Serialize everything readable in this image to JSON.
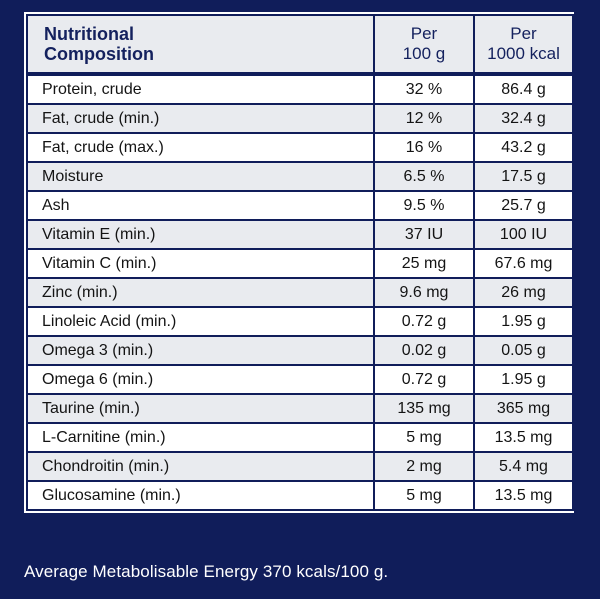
{
  "header": {
    "composition_line1": "Nutritional",
    "composition_line2": "Composition",
    "per100_line1": "Per",
    "per100_line2": "100 g",
    "per1000_line1": "Per",
    "per1000_line2": "1000 kcal"
  },
  "rows": [
    {
      "name": "Protein, crude",
      "per100": "32 %",
      "per1000": "86.4 g"
    },
    {
      "name": "Fat, crude (min.)",
      "per100": "12 %",
      "per1000": "32.4 g"
    },
    {
      "name": "Fat, crude (max.)",
      "per100": "16 %",
      "per1000": "43.2 g"
    },
    {
      "name": "Moisture",
      "per100": "6.5 %",
      "per1000": "17.5 g"
    },
    {
      "name": "Ash",
      "per100": "9.5 %",
      "per1000": "25.7 g"
    },
    {
      "name": "Vitamin E (min.)",
      "per100": "37 IU",
      "per1000": "100 IU"
    },
    {
      "name": "Vitamin C (min.)",
      "per100": "25 mg",
      "per1000": "67.6 mg"
    },
    {
      "name": "Zinc (min.)",
      "per100": "9.6 mg",
      "per1000": "26 mg"
    },
    {
      "name": "Linoleic Acid (min.)",
      "per100": "0.72 g",
      "per1000": "1.95 g"
    },
    {
      "name": "Omega 3 (min.)",
      "per100": "0.02 g",
      "per1000": "0.05 g"
    },
    {
      "name": "Omega 6 (min.)",
      "per100": "0.72 g",
      "per1000": "1.95 g"
    },
    {
      "name": "Taurine (min.)",
      "per100": "135 mg",
      "per1000": "365 mg"
    },
    {
      "name": "L-Carnitine (min.)",
      "per100": "5 mg",
      "per1000": "13.5 mg"
    },
    {
      "name": "Chondroitin (min.)",
      "per100": "2 mg",
      "per1000": "5.4 mg"
    },
    {
      "name": "Glucosamine (min.)",
      "per100": "5 mg",
      "per1000": "13.5 mg"
    }
  ],
  "footnote": "Average Metabolisable Energy 370 kcals/100 g.",
  "colors": {
    "background": "#101d5a",
    "row_alt": "#e9ebef",
    "row": "#ffffff",
    "header_text": "#14215e"
  }
}
